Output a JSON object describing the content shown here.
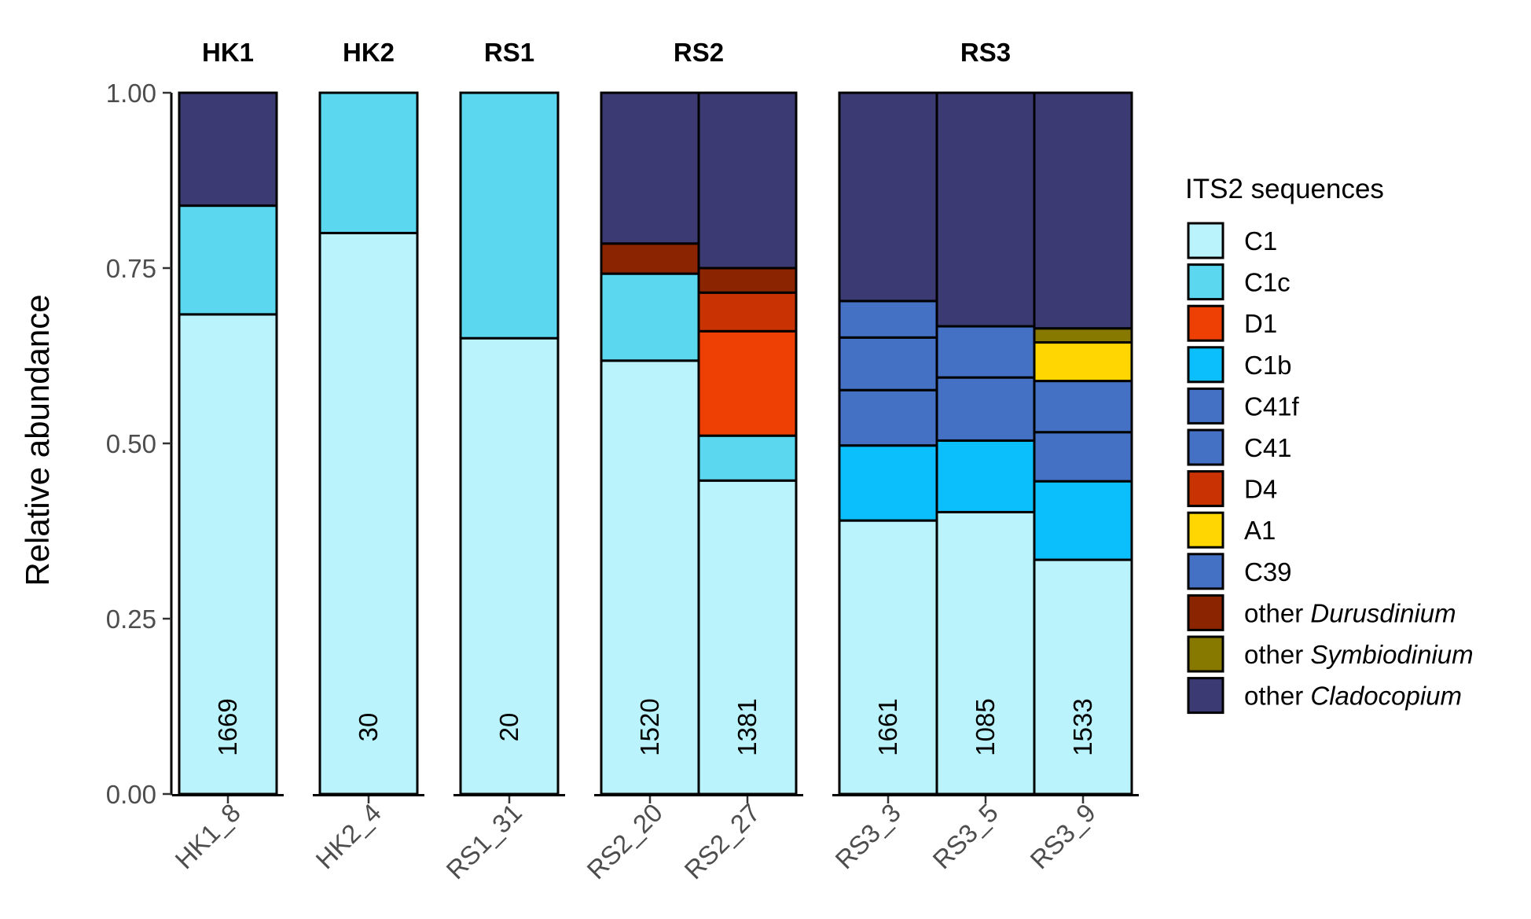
{
  "chart_data": {
    "type": "bar",
    "stacked": true,
    "ylabel": "Relative abundance",
    "ylim": [
      0,
      1
    ],
    "yticks": [
      "0.00",
      "0.25",
      "0.50",
      "0.75",
      "1.00"
    ],
    "legend_title": "ITS2 sequences",
    "legend_placement": "right",
    "sequences": [
      {
        "name": "C1",
        "prefix": "C1",
        "italic": "",
        "color": "#BAF3FC"
      },
      {
        "name": "C1c",
        "prefix": "C1c",
        "italic": "",
        "color": "#5BD8F0"
      },
      {
        "name": "D1",
        "prefix": "D1",
        "italic": "",
        "color": "#EE3F05"
      },
      {
        "name": "C1b",
        "prefix": "C1b",
        "italic": "",
        "color": "#0BBFFD"
      },
      {
        "name": "C41f",
        "prefix": "C41f",
        "italic": "",
        "color": "#4471C4"
      },
      {
        "name": "C41",
        "prefix": "C41",
        "italic": "",
        "color": "#4471C4"
      },
      {
        "name": "D4",
        "prefix": "D4",
        "italic": "",
        "color": "#C93202"
      },
      {
        "name": "A1",
        "prefix": "A1",
        "italic": "",
        "color": "#FFD601"
      },
      {
        "name": "C39",
        "prefix": "C39",
        "italic": "",
        "color": "#4471C4"
      },
      {
        "name": "other Durusdinium",
        "prefix": "other ",
        "italic": "Durusdinium",
        "color": "#8B2400"
      },
      {
        "name": "other Symbiodinium",
        "prefix": "other ",
        "italic": "Symbiodinium",
        "color": "#877800"
      },
      {
        "name": "other Cladocopium",
        "prefix": "other ",
        "italic": "Cladocopium",
        "color": "#3B3A73"
      }
    ],
    "facets": [
      {
        "title": "HK1",
        "samples": [
          {
            "label": "HK1_8",
            "count": "1669",
            "stack": [
              {
                "seq": "C1",
                "value": 0.684
              },
              {
                "seq": "C1c",
                "value": 0.155
              },
              {
                "seq": "other Cladocopium",
                "value": 0.161
              }
            ]
          }
        ]
      },
      {
        "title": "HK2",
        "samples": [
          {
            "label": "HK2_4",
            "count": "30",
            "stack": [
              {
                "seq": "C1",
                "value": 0.8
              },
              {
                "seq": "C1c",
                "value": 0.2
              }
            ]
          }
        ]
      },
      {
        "title": "RS1",
        "samples": [
          {
            "label": "RS1_31",
            "count": "20",
            "stack": [
              {
                "seq": "C1",
                "value": 0.65
              },
              {
                "seq": "C1c",
                "value": 0.35
              }
            ]
          }
        ]
      },
      {
        "title": "RS2",
        "samples": [
          {
            "label": "RS2_20",
            "count": "1520",
            "stack": [
              {
                "seq": "C1",
                "value": 0.618
              },
              {
                "seq": "C1c",
                "value": 0.124
              },
              {
                "seq": "other Durusdinium",
                "value": 0.043
              },
              {
                "seq": "other Cladocopium",
                "value": 0.215
              }
            ]
          },
          {
            "label": "RS2_27",
            "count": "1381",
            "stack": [
              {
                "seq": "C1",
                "value": 0.447
              },
              {
                "seq": "C1c",
                "value": 0.064
              },
              {
                "seq": "D1",
                "value": 0.149
              },
              {
                "seq": "D4",
                "value": 0.055
              },
              {
                "seq": "other Durusdinium",
                "value": 0.035
              },
              {
                "seq": "other Cladocopium",
                "value": 0.25
              }
            ]
          }
        ]
      },
      {
        "title": "RS3",
        "samples": [
          {
            "label": "RS3_3",
            "count": "1661",
            "stack": [
              {
                "seq": "C1",
                "value": 0.39
              },
              {
                "seq": "C1b",
                "value": 0.107
              },
              {
                "seq": "C39",
                "value": 0.079
              },
              {
                "seq": "C41",
                "value": 0.075
              },
              {
                "seq": "C41f",
                "value": 0.052
              },
              {
                "seq": "other Cladocopium",
                "value": 0.297
              }
            ]
          },
          {
            "label": "RS3_5",
            "count": "1085",
            "stack": [
              {
                "seq": "C1",
                "value": 0.402
              },
              {
                "seq": "C1b",
                "value": 0.102
              },
              {
                "seq": "C41",
                "value": 0.09
              },
              {
                "seq": "C41f",
                "value": 0.073
              },
              {
                "seq": "other Cladocopium",
                "value": 0.333
              }
            ]
          },
          {
            "label": "RS3_9",
            "count": "1533",
            "stack": [
              {
                "seq": "C1",
                "value": 0.334
              },
              {
                "seq": "C1b",
                "value": 0.112
              },
              {
                "seq": "C41",
                "value": 0.07
              },
              {
                "seq": "C41f",
                "value": 0.073
              },
              {
                "seq": "A1",
                "value": 0.055
              },
              {
                "seq": "other Symbiodinium",
                "value": 0.02
              },
              {
                "seq": "other Cladocopium",
                "value": 0.336
              }
            ]
          }
        ]
      }
    ]
  }
}
